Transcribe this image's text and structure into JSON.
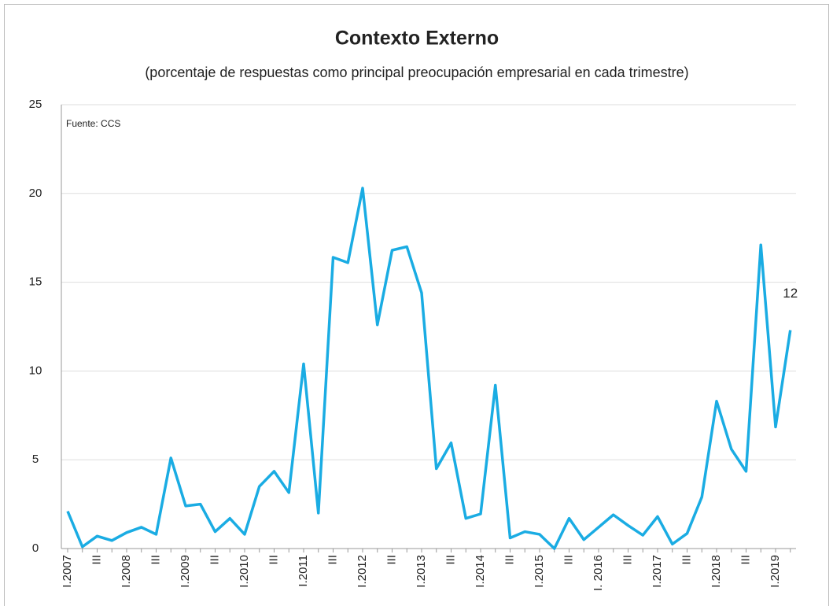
{
  "chart_data": {
    "type": "line",
    "title": "Contexto Externo",
    "subtitle": "(porcentaje de respuestas como principal preocupación empresarial en cada trimestre)",
    "annotations": [
      "Fuente: CCS"
    ],
    "categories": [
      "I.2007",
      null,
      "III",
      null,
      "I.2008",
      null,
      "III",
      null,
      "I.2009",
      null,
      "III",
      null,
      "I.2010",
      null,
      "III",
      null,
      "I.2011",
      null,
      "III",
      null,
      "I.2012",
      null,
      "III",
      null,
      "I.2013",
      null,
      "III",
      null,
      "I.2014",
      null,
      "III",
      null,
      "I.2015",
      null,
      "III",
      null,
      "I. 2016",
      null,
      "III",
      null,
      "I.2017",
      null,
      "III",
      null,
      "I.2018",
      null,
      "III",
      null,
      "I.2019",
      null
    ],
    "series": [
      {
        "name": "Contexto Externo",
        "color": "#1aace3",
        "values": [
          2.1,
          0.1,
          0.7,
          0.45,
          0.9,
          1.2,
          0.8,
          5.1,
          2.4,
          2.5,
          0.95,
          1.7,
          0.8,
          3.5,
          4.35,
          3.15,
          10.4,
          2.0,
          16.4,
          16.1,
          20.3,
          12.6,
          16.8,
          17.0,
          14.4,
          4.5,
          5.95,
          1.7,
          1.95,
          9.2,
          0.6,
          0.95,
          0.8,
          0.0,
          1.7,
          0.5,
          1.2,
          1.9,
          1.3,
          0.75,
          1.8,
          0.25,
          0.85,
          2.9,
          8.3,
          5.6,
          4.35,
          17.1,
          6.85,
          12.3
        ],
        "value_labels": [
          null,
          null,
          null,
          null,
          null,
          null,
          null,
          null,
          null,
          null,
          null,
          null,
          null,
          null,
          null,
          null,
          null,
          null,
          null,
          null,
          null,
          null,
          null,
          null,
          null,
          null,
          null,
          null,
          null,
          null,
          null,
          null,
          null,
          null,
          null,
          null,
          null,
          null,
          null,
          null,
          null,
          null,
          null,
          null,
          null,
          null,
          null,
          null,
          null,
          "12"
        ]
      }
    ],
    "ylim": [
      0,
      25
    ],
    "yticks": [
      0,
      5,
      10,
      15,
      20,
      25
    ],
    "grid": true
  }
}
